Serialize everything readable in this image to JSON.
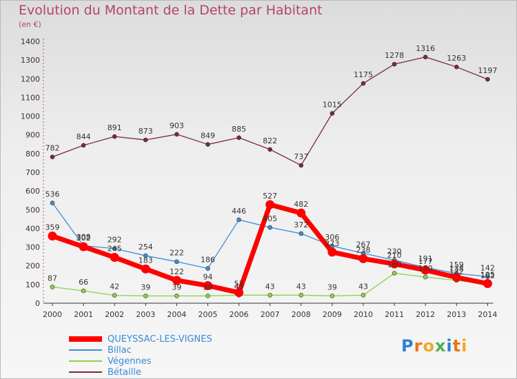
{
  "header": {
    "title": "Evolution du Montant de la Dette par Habitant",
    "unit": "(en €)"
  },
  "logo": {
    "text": "Proxiti"
  },
  "chart_data": {
    "type": "line",
    "title": "Evolution du Montant de la Dette par Habitant",
    "ylabel": "(en €)",
    "xlabel": "",
    "ylim": [
      0,
      1400
    ],
    "yticks": [
      0,
      100,
      200,
      300,
      400,
      500,
      600,
      700,
      800,
      900,
      1000,
      1100,
      1200,
      1300,
      1400
    ],
    "x": [
      "2000",
      "2001",
      "2002",
      "2003",
      "2004",
      "2005",
      "2006",
      "2007",
      "2008",
      "2009",
      "2010",
      "2011",
      "2012",
      "2013",
      "2014"
    ],
    "grid": false,
    "legend_position": "bottom-left",
    "series": [
      {
        "name": "QUEYSSAC-LES-VIGNES",
        "color": "#ff0000",
        "values": [
          359,
          302,
          245,
          183,
          122,
          94,
          57,
          527,
          482,
          273,
          238,
          210,
          177,
          138,
          105
        ]
      },
      {
        "name": "Billac",
        "color": "#3d8ed4",
        "values": [
          536,
          308,
          292,
          254,
          222,
          186,
          446,
          405,
          372,
          306,
          267,
          230,
          191,
          159,
          142
        ]
      },
      {
        "name": "Végennes",
        "color": "#88d44a",
        "values": [
          87,
          66,
          42,
          39,
          39,
          39,
          43,
          43,
          43,
          39,
          43,
          160,
          140,
          122,
          102
        ]
      },
      {
        "name": "Bétaille",
        "color": "#7a2a35",
        "values": [
          782,
          844,
          891,
          873,
          903,
          849,
          885,
          822,
          737,
          1015,
          1175,
          1278,
          1316,
          1263,
          1197
        ]
      }
    ]
  }
}
